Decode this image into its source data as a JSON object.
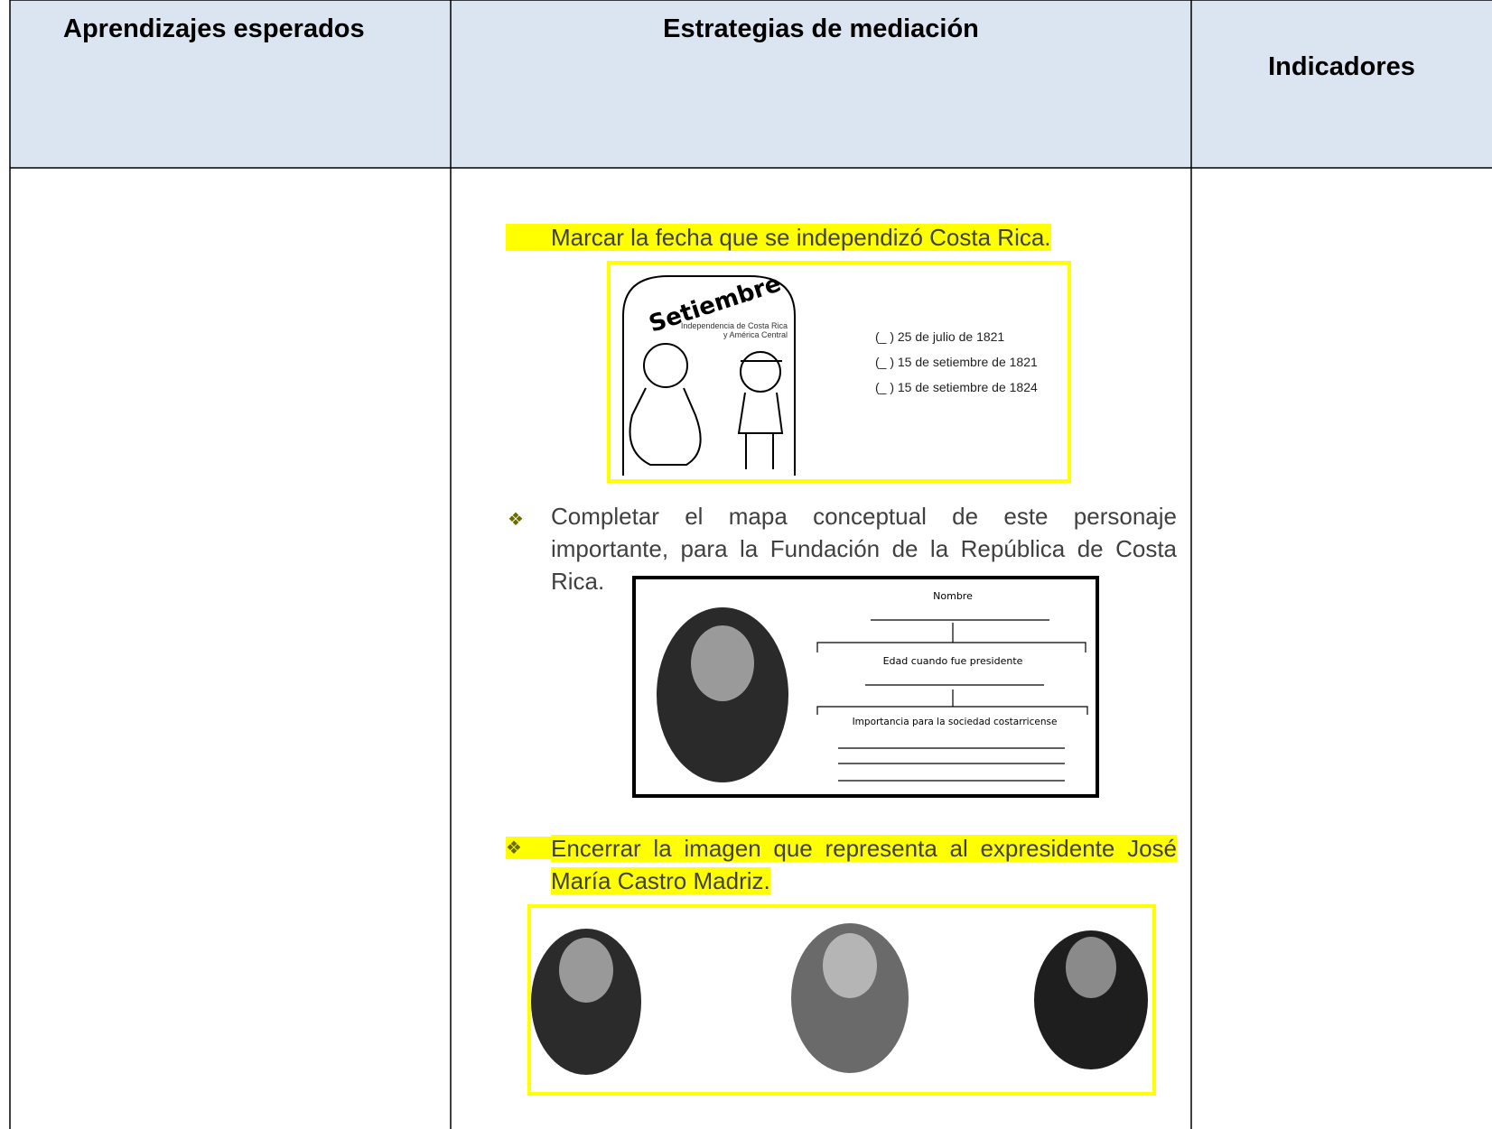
{
  "table": {
    "headers": [
      "Aprendizajes esperados",
      "Estrategias de mediación",
      "Indicadores"
    ]
  },
  "activities": [
    {
      "text": "Marcar la fecha que se independizó Costa Rica.",
      "image": {
        "title": "Setiembre",
        "caption": "Independencia de Costa Rica y América Central",
        "options": [
          "(_ ) 25 de julio de 1821",
          "(_ ) 15 de setiembre de 1821",
          "(_ ) 15 de setiembre de 1824"
        ]
      }
    },
    {
      "text": "Completar el mapa conceptual de este personaje importante, para la Fundación de la República de Costa Rica.",
      "image": {
        "fields": [
          "Nombre",
          "Edad cuando fue presidente",
          "Importancia para la sociedad costarricense"
        ]
      }
    },
    {
      "text": "Encerrar la imagen que representa al expresidente José María Castro Madriz."
    }
  ]
}
